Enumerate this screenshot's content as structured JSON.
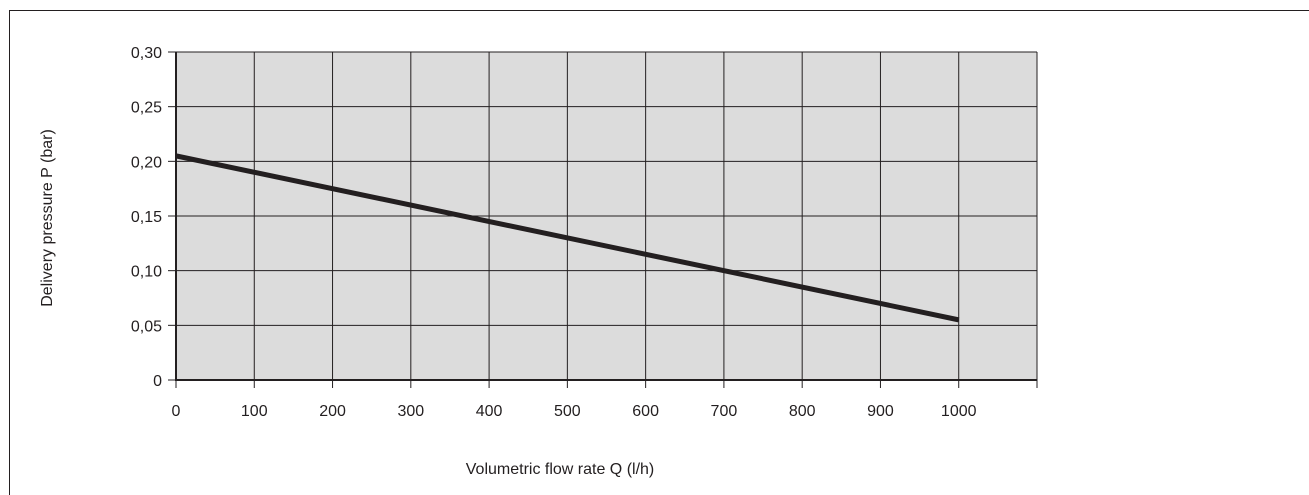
{
  "chart_data": {
    "type": "line",
    "xlabel": "Volumetric flow rate Q (l/h)",
    "ylabel": "Delivery pressure P (bar)",
    "x_ticks": [
      "0",
      "100",
      "200",
      "300",
      "400",
      "500",
      "600",
      "700",
      "800",
      "900",
      "1000"
    ],
    "y_ticks": [
      "0",
      "0,05",
      "0,10",
      "0,15",
      "0,20",
      "0,25",
      "0,30"
    ],
    "xlim": [
      0,
      1100
    ],
    "ylim": [
      0,
      0.3
    ],
    "grid": true,
    "series": [
      {
        "x": [
          0,
          1000
        ],
        "y": [
          0.205,
          0.055
        ],
        "color": "#231f20"
      }
    ]
  },
  "colors": {
    "plot_background": "#dcdcdc",
    "grid": "#231f20",
    "line": "#231f20"
  }
}
